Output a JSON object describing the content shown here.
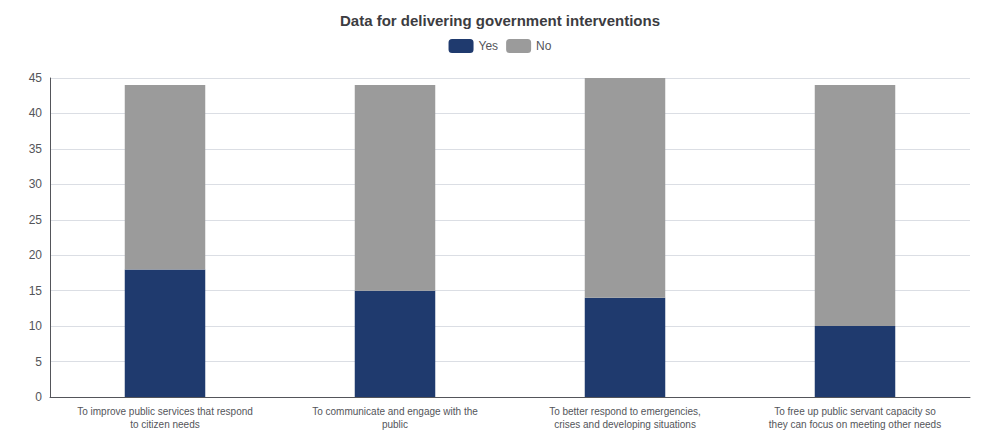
{
  "chart_data": {
    "type": "bar",
    "title": "Data for delivering government interventions",
    "categories": [
      "To improve public services that respond\nto citizen needs",
      "To communicate and engage with the\npublic",
      "To better respond to emergencies,\ncrises and developing situations",
      "To free up public servant capacity so\nthey can focus on meeting other needs"
    ],
    "series": [
      {
        "name": "Yes",
        "color": "#1F3A6E",
        "values": [
          18,
          15,
          14,
          10
        ]
      },
      {
        "name": "No",
        "color": "#9B9B9B",
        "values": [
          26,
          29,
          31,
          34
        ]
      }
    ],
    "stacked": true,
    "ylim": [
      0,
      45
    ],
    "yticks": [
      0,
      5,
      10,
      15,
      20,
      25,
      30,
      35,
      40,
      45
    ],
    "grid": true,
    "legend": "top"
  }
}
